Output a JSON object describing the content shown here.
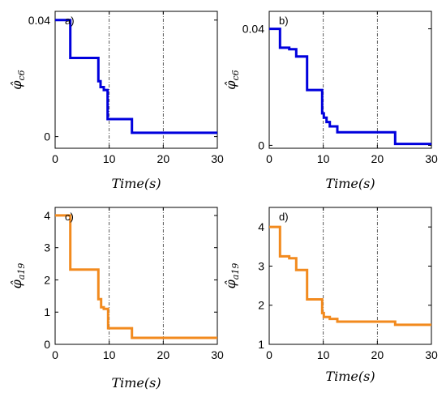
{
  "chart_data": [
    {
      "type": "line",
      "panel_label": "a)",
      "xlabel": "Time(s)",
      "ylabel": "φ̂c6",
      "ylabel_base": "φ̂",
      "ylabel_sub": "c6",
      "xlim": [
        0,
        30
      ],
      "ylim": [
        -0.004,
        0.043
      ],
      "xticks": [
        0,
        10,
        20,
        30
      ],
      "xtick_labels": [
        "0",
        "10",
        "20",
        "30"
      ],
      "yticks": [
        0,
        0.04
      ],
      "ytick_labels": [
        "0",
        "0.04"
      ],
      "vlines": [
        10,
        20
      ],
      "color": "#0000dd",
      "series": [
        {
          "x": [
            0,
            2.8,
            2.8,
            8.0,
            8.0,
            8.4,
            8.4,
            9.0,
            9.0,
            9.7,
            9.7,
            14.2,
            14.2,
            30
          ],
          "y": [
            0.04,
            0.04,
            0.027,
            0.027,
            0.019,
            0.019,
            0.017,
            0.017,
            0.016,
            0.016,
            0.006,
            0.006,
            0.0013,
            0.0013
          ]
        }
      ]
    },
    {
      "type": "line",
      "panel_label": "b)",
      "xlabel": "Time(s)",
      "ylabel": "φ̂c6",
      "ylabel_base": "φ̂",
      "ylabel_sub": "c6",
      "xlim": [
        0,
        30
      ],
      "ylim": [
        -0.001,
        0.046
      ],
      "xticks": [
        0,
        10,
        20,
        30
      ],
      "xtick_labels": [
        "0",
        "10",
        "20",
        "30"
      ],
      "yticks": [
        0,
        0.04
      ],
      "ytick_labels": [
        "0",
        "0.04"
      ],
      "vlines": [
        10,
        20
      ],
      "color": "#0000dd",
      "series": [
        {
          "x": [
            0,
            2.0,
            2.0,
            3.7,
            3.7,
            5.0,
            5.0,
            7.0,
            7.0,
            9.8,
            9.8,
            10.1,
            10.1,
            10.6,
            10.6,
            11.2,
            11.2,
            12.6,
            12.6,
            23.3,
            23.3,
            30
          ],
          "y": [
            0.04,
            0.04,
            0.0335,
            0.0335,
            0.033,
            0.033,
            0.0305,
            0.0305,
            0.019,
            0.019,
            0.011,
            0.011,
            0.0095,
            0.0095,
            0.008,
            0.008,
            0.0065,
            0.0065,
            0.0045,
            0.0045,
            0.0005,
            0.0005
          ]
        }
      ]
    },
    {
      "type": "line",
      "panel_label": "c)",
      "xlabel": "Time(s)",
      "ylabel": "φ̂a19",
      "ylabel_base": "φ̂",
      "ylabel_sub": "a19",
      "xlim": [
        0,
        30
      ],
      "ylim": [
        0,
        4.25
      ],
      "xticks": [
        0,
        10,
        20,
        30
      ],
      "xtick_labels": [
        "0",
        "10",
        "20",
        "30"
      ],
      "yticks": [
        0,
        1,
        2,
        3,
        4
      ],
      "ytick_labels": [
        "0",
        "1",
        "2",
        "3",
        "4"
      ],
      "vlines": [
        10,
        20
      ],
      "color": "#f28a1e",
      "series": [
        {
          "x": [
            0,
            2.8,
            2.8,
            8.0,
            8.0,
            8.5,
            8.5,
            9.0,
            9.0,
            9.8,
            9.8,
            14.2,
            14.2,
            30
          ],
          "y": [
            4.0,
            4.0,
            2.32,
            2.32,
            1.4,
            1.4,
            1.15,
            1.15,
            1.1,
            1.1,
            0.5,
            0.5,
            0.2,
            0.2
          ]
        }
      ]
    },
    {
      "type": "line",
      "panel_label": "d)",
      "xlabel": "Time(s)",
      "ylabel": "φ̂a19",
      "ylabel_base": "φ̂",
      "ylabel_sub": "a19",
      "xlim": [
        0,
        30
      ],
      "ylim": [
        1,
        4.5
      ],
      "xticks": [
        0,
        10,
        20,
        30
      ],
      "xtick_labels": [
        "0",
        "10",
        "20",
        "30"
      ],
      "yticks": [
        1,
        2,
        3,
        4
      ],
      "ytick_labels": [
        "1",
        "2",
        "3",
        "4"
      ],
      "vlines": [
        10,
        20
      ],
      "color": "#f28a1e",
      "series": [
        {
          "x": [
            0,
            2.0,
            2.0,
            3.7,
            3.7,
            5.0,
            5.0,
            7.0,
            7.0,
            9.8,
            9.8,
            10.1,
            10.1,
            10.6,
            10.6,
            11.2,
            11.2,
            12.6,
            12.6,
            23.3,
            23.3,
            30
          ],
          "y": [
            4.0,
            4.0,
            3.25,
            3.25,
            3.2,
            3.2,
            2.9,
            2.9,
            2.15,
            2.15,
            1.8,
            1.8,
            1.7,
            1.7,
            1.7,
            1.7,
            1.65,
            1.65,
            1.58,
            1.58,
            1.5,
            1.5
          ]
        }
      ]
    }
  ]
}
